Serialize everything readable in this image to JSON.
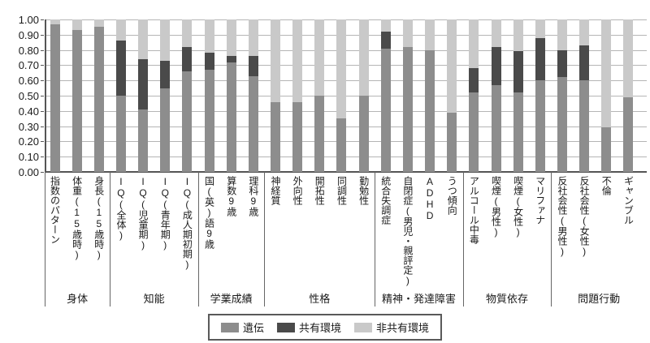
{
  "chart_data": {
    "type": "bar",
    "stacked": true,
    "title": "",
    "xlabel": "",
    "ylabel": "",
    "ylim": [
      0,
      1
    ],
    "grid": true,
    "legend_position": "bottom",
    "ytick_labels": [
      "1.00",
      "0.90",
      "0.80",
      "0.70",
      "0.60",
      "0.50",
      "0.40",
      "0.30",
      "0.20",
      "0.10",
      "0.00"
    ],
    "categories": [
      "指数のパターン",
      "体重(15歳時)",
      "身長(15歳時)",
      "IQ(全体)",
      "IQ(児童期)",
      "IQ(青年期)",
      "IQ(成人期初期)",
      "国(英)語9歳",
      "算数9歳",
      "理科9歳",
      "神経質",
      "外向性",
      "開拓性",
      "同調性",
      "勤勉性",
      "統合失調症",
      "自閉症(男児・親評定)",
      "ADHD",
      "うつ傾向",
      "アルコール中毒",
      "喫煙(男性)",
      "喫煙(女性)",
      "マリファナ",
      "反社会性(男性)",
      "反社会性(女性)",
      "不倫",
      "ギャンブル"
    ],
    "groups": [
      {
        "label": "身体",
        "count": 3
      },
      {
        "label": "知能",
        "count": 4
      },
      {
        "label": "学業成績",
        "count": 3
      },
      {
        "label": "性格",
        "count": 5
      },
      {
        "label": "精神・発達障害",
        "count": 4
      },
      {
        "label": "物質依存",
        "count": 4
      },
      {
        "label": "問題行動",
        "count": 4
      }
    ],
    "series": [
      {
        "name": "遺伝",
        "color": "#8d8d8d",
        "values": [
          0.97,
          0.93,
          0.95,
          0.5,
          0.41,
          0.55,
          0.66,
          0.67,
          0.72,
          0.63,
          0.46,
          0.46,
          0.5,
          0.35,
          0.5,
          0.81,
          0.82,
          0.8,
          0.39,
          0.52,
          0.57,
          0.52,
          0.6,
          0.62,
          0.6,
          0.29,
          0.49
        ]
      },
      {
        "name": "共有環境",
        "color": "#4a4a4a",
        "values": [
          0.0,
          0.0,
          0.0,
          0.36,
          0.33,
          0.18,
          0.16,
          0.11,
          0.04,
          0.13,
          0.0,
          0.0,
          0.0,
          0.0,
          0.0,
          0.11,
          0.0,
          0.0,
          0.0,
          0.16,
          0.25,
          0.27,
          0.28,
          0.18,
          0.23,
          0.0,
          0.0
        ]
      },
      {
        "name": "非共有環境",
        "color": "#c9c9c9",
        "values": [
          0.03,
          0.07,
          0.05,
          0.14,
          0.26,
          0.27,
          0.18,
          0.22,
          0.24,
          0.24,
          0.54,
          0.54,
          0.5,
          0.65,
          0.5,
          0.08,
          0.18,
          0.2,
          0.61,
          0.32,
          0.18,
          0.21,
          0.12,
          0.2,
          0.17,
          0.71,
          0.51
        ]
      }
    ]
  }
}
